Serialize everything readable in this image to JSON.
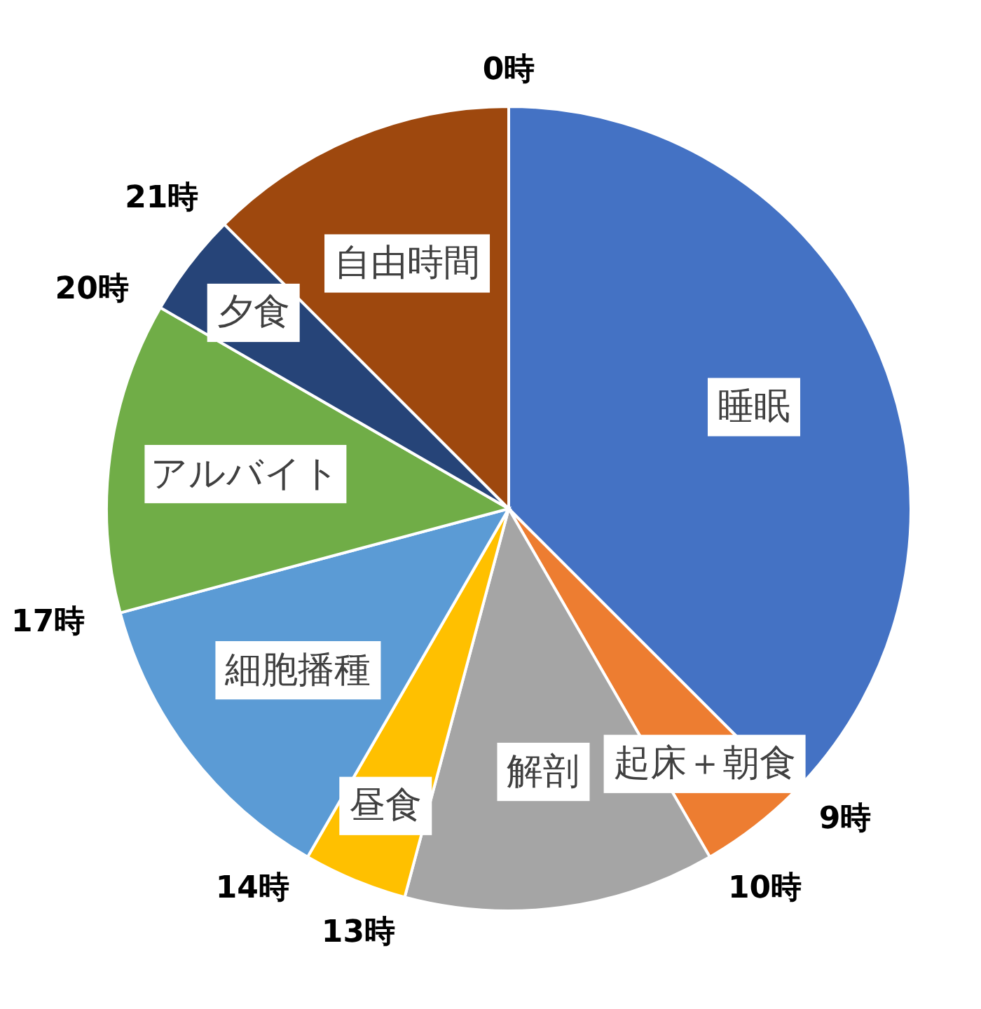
{
  "chart_data": {
    "type": "pie",
    "categories": [
      "睡眠",
      "起床＋朝食",
      "解剖",
      "昼食",
      "細胞播種",
      "アルバイト",
      "夕食",
      "自由時間"
    ],
    "values": [
      37.5,
      4.17,
      12.5,
      4.17,
      12.5,
      12.5,
      4.17,
      12.5
    ],
    "colors": [
      "#4472c4",
      "#ed7d31",
      "#a5a5a5",
      "#ffc000",
      "#5b9bd5",
      "#70ad47",
      "#264478",
      "#9e480e"
    ],
    "annotations": [
      "0時",
      "9時",
      "10時",
      "13時",
      "14時",
      "17時",
      "20時",
      "21時"
    ]
  }
}
